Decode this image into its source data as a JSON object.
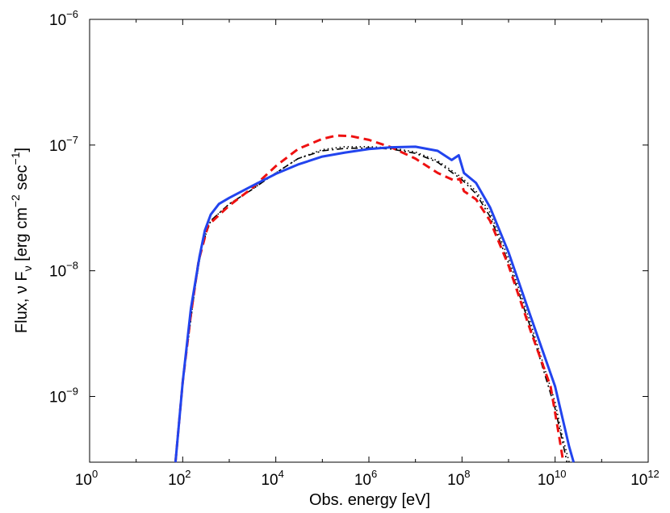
{
  "chart_data": {
    "type": "line",
    "title": "",
    "xlabel": "Obs. energy [eV]",
    "ylabel": {
      "prefix": "Flux, ",
      "nu": "ν",
      "F": " F",
      "sub": "ν",
      "bracket_open": " [erg cm",
      "exp1": "−2",
      "sec": " sec",
      "exp2": "−1",
      "bracket_close": "]"
    },
    "xscale": "log",
    "yscale": "log",
    "xlim": [
      1,
      1000000000000.0
    ],
    "ylim": [
      3e-10,
      1e-06
    ],
    "grid": false,
    "x_ticks": [
      {
        "base": "10",
        "exp": "0"
      },
      {
        "base": "10",
        "exp": "2"
      },
      {
        "base": "10",
        "exp": "4"
      },
      {
        "base": "10",
        "exp": "6"
      },
      {
        "base": "10",
        "exp": "8"
      },
      {
        "base": "10",
        "exp": "10"
      },
      {
        "base": "10",
        "exp": "12"
      }
    ],
    "y_ticks": [
      {
        "base": "10",
        "exp": "−9"
      },
      {
        "base": "10",
        "exp": "−8"
      },
      {
        "base": "10",
        "exp": "−7"
      },
      {
        "base": "10",
        "exp": "−6"
      }
    ],
    "series": [
      {
        "style": "dotted",
        "color": "#000000",
        "points": [
          [
            70,
            3e-10
          ],
          [
            100,
            1.3e-09
          ],
          [
            180,
            7e-09
          ],
          [
            260,
            1.6e-08
          ],
          [
            400,
            2.5e-08
          ],
          [
            1000,
            3.4e-08
          ],
          [
            3000,
            4.4e-08
          ],
          [
            10000,
            6e-08
          ],
          [
            30000,
            7.8e-08
          ],
          [
            100000,
            9.2e-08
          ],
          [
            300000,
            9.7e-08
          ],
          [
            1000000,
            9.7e-08
          ],
          [
            3000000,
            9.5e-08
          ],
          [
            10000000,
            8.8e-08
          ],
          [
            30000000,
            7.5e-08
          ],
          [
            100000000,
            5.5e-08
          ],
          [
            200000000,
            4.3e-08
          ],
          [
            400000000,
            2.9e-08
          ],
          [
            1000000000,
            1.25e-08
          ],
          [
            3000000000,
            3.8e-09
          ],
          [
            10000000000,
            9e-10
          ],
          [
            14000000000,
            5e-10
          ],
          [
            20000000000,
            3e-10
          ]
        ]
      },
      {
        "style": "dashdot",
        "color": "#000000",
        "points": [
          [
            70,
            3e-10
          ],
          [
            100,
            1.3e-09
          ],
          [
            180,
            7e-09
          ],
          [
            260,
            1.6e-08
          ],
          [
            400,
            2.5e-08
          ],
          [
            1000,
            3.4e-08
          ],
          [
            3000,
            4.4e-08
          ],
          [
            10000,
            6e-08
          ],
          [
            30000,
            7.8e-08
          ],
          [
            100000,
            9e-08
          ],
          [
            300000,
            9.4e-08
          ],
          [
            1000000,
            9.5e-08
          ],
          [
            3000000,
            9.3e-08
          ],
          [
            10000000,
            8.6e-08
          ],
          [
            30000000,
            7.3e-08
          ],
          [
            100000000,
            5.3e-08
          ],
          [
            200000000,
            4.1e-08
          ],
          [
            400000000,
            2.7e-08
          ],
          [
            1000000000,
            1.15e-08
          ],
          [
            3000000000,
            3.5e-09
          ],
          [
            10000000000,
            8e-10
          ],
          [
            14000000000,
            4.6e-10
          ],
          [
            18000000000,
            3e-10
          ]
        ]
      },
      {
        "style": "dashed",
        "color": "#ee1111",
        "points": [
          [
            70,
            3e-10
          ],
          [
            100,
            1.3e-09
          ],
          [
            150,
            4.5e-09
          ],
          [
            220,
            1.2e-08
          ],
          [
            350,
            2.3e-08
          ],
          [
            1000,
            3.3e-08
          ],
          [
            3000,
            4.5e-08
          ],
          [
            10000,
            6.8e-08
          ],
          [
            30000,
            9.3e-08
          ],
          [
            100000,
            1.12e-07
          ],
          [
            200000,
            1.19e-07
          ],
          [
            400000,
            1.18e-07
          ],
          [
            1000000,
            1.1e-07
          ],
          [
            3000000,
            9.6e-08
          ],
          [
            10000000,
            7.8e-08
          ],
          [
            30000000,
            6e-08
          ],
          [
            70000000,
            5.2e-08
          ],
          [
            90000000,
            5.4e-08
          ],
          [
            110000000,
            4.3e-08
          ],
          [
            200000000,
            3.7e-08
          ],
          [
            400000000,
            2.5e-08
          ],
          [
            1000000000,
            1.1e-08
          ],
          [
            3000000000,
            3.3e-09
          ],
          [
            8000000000,
            1.2e-09
          ],
          [
            12000000000,
            5e-10
          ],
          [
            15000000000,
            3e-10
          ]
        ]
      },
      {
        "style": "solid",
        "color": "#2244ee",
        "points": [
          [
            70,
            3e-10
          ],
          [
            100,
            1.3e-09
          ],
          [
            150,
            5e-09
          ],
          [
            230,
            1.3e-08
          ],
          [
            300,
            2.1e-08
          ],
          [
            400,
            2.8e-08
          ],
          [
            600,
            3.4e-08
          ],
          [
            1000,
            3.8e-08
          ],
          [
            3000,
            4.7e-08
          ],
          [
            10000,
            5.9e-08
          ],
          [
            30000,
            7e-08
          ],
          [
            100000,
            8.1e-08
          ],
          [
            300000,
            8.7e-08
          ],
          [
            1000000,
            9.3e-08
          ],
          [
            3000000,
            9.6e-08
          ],
          [
            10000000,
            9.7e-08
          ],
          [
            30000000,
            9e-08
          ],
          [
            60000000,
            7.6e-08
          ],
          [
            85000000,
            8.3e-08
          ],
          [
            110000000,
            6e-08
          ],
          [
            200000000,
            5e-08
          ],
          [
            400000000,
            3.2e-08
          ],
          [
            1000000000,
            1.4e-08
          ],
          [
            3000000000,
            4.3e-09
          ],
          [
            10000000000,
            1.2e-09
          ],
          [
            20000000000,
            4e-10
          ],
          [
            25000000000,
            3e-10
          ]
        ]
      }
    ]
  }
}
